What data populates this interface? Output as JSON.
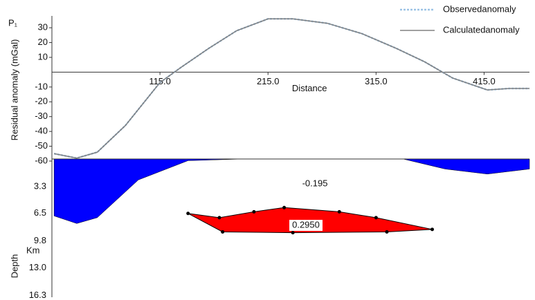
{
  "chart_data": [
    {
      "type": "line",
      "annotation": "P₁",
      "y_label": "Residual anomaly (mGal)",
      "x_label": "Distance",
      "xlim": [
        15,
        457
      ],
      "xticks": [
        {
          "value": 115,
          "label": "115.0"
        },
        {
          "value": 215,
          "label": "215.0"
        },
        {
          "value": 315,
          "label": "315.0"
        },
        {
          "value": 415,
          "label": "415.0"
        }
      ],
      "ylim": [
        -60,
        38
      ],
      "yticks": [
        30,
        20,
        10,
        -10,
        -20,
        -30,
        -40,
        -50,
        -60
      ],
      "legend": "top-right",
      "x": [
        17,
        38,
        57,
        83,
        115,
        134,
        160,
        186,
        215,
        238,
        270,
        302,
        334,
        360,
        386,
        418,
        438,
        457
      ],
      "series": [
        {
          "name": "Observedanomaly",
          "color": "#9cc3e6",
          "values": [
            -55,
            -58,
            -54,
            -36,
            -7,
            3,
            16,
            28,
            36,
            36,
            33,
            26,
            16,
            7,
            -4,
            -12,
            -11,
            -11
          ]
        },
        {
          "name": "Calculatedanomaly",
          "color": "#808080",
          "values": [
            -55,
            -58,
            -54,
            -36,
            -7,
            3,
            16,
            28,
            36,
            36,
            33,
            26,
            16,
            7,
            -4,
            -12,
            -11,
            -11
          ]
        }
      ]
    },
    {
      "type": "section",
      "y_label": "Depth",
      "y_unit": "Km",
      "xlim": [
        15,
        457
      ],
      "ylim": [
        0,
        16.5
      ],
      "yticks": [
        3.3,
        6.5,
        9.8,
        {
          "value": 13.0,
          "label": "13.0"
        },
        16.3
      ],
      "bodies": [
        {
          "label": "-0.195",
          "color": "#0000ff",
          "shape": "layer",
          "x": [
            17,
            38,
            57,
            95,
            141,
            192,
            340,
            379,
            418,
            457
          ],
          "depth": [
            6.8,
            7.7,
            7.0,
            2.5,
            0.2,
            0,
            0,
            1.2,
            1.8,
            1.2
          ]
        },
        {
          "label": "0.2950",
          "color": "#ff0000",
          "shape": "polygon",
          "x": [
            141,
            170,
            202,
            230,
            281,
            315,
            367,
            325,
            238,
            173
          ],
          "depth": [
            6.5,
            7.0,
            6.3,
            5.8,
            6.3,
            7.0,
            8.4,
            8.7,
            8.8,
            8.7
          ]
        }
      ]
    }
  ]
}
